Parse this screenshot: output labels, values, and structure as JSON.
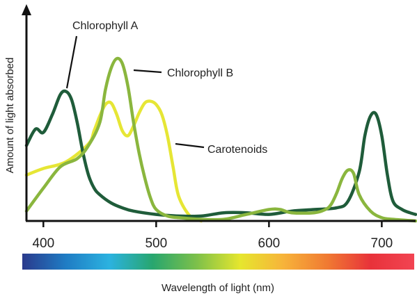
{
  "chart_data": {
    "type": "line",
    "title": "",
    "xlabel": "Wavelength of light (nm)",
    "ylabel": "Amount of light absorbed",
    "xlim": [
      385,
      730
    ],
    "ylim": [
      0,
      100
    ],
    "x_ticks": [
      "400",
      "500",
      "600",
      "700"
    ],
    "grid": false,
    "legend": "annotations",
    "spectrum_bar": {
      "colors": [
        "#2a3a8c",
        "#1f7cc4",
        "#2bb2e0",
        "#28a66e",
        "#7cc04a",
        "#e6e62e",
        "#f7b33a",
        "#f07a32",
        "#e8323a",
        "#f24452"
      ]
    },
    "series": [
      {
        "name": "Chlorophyll A",
        "color": "#1f5c3a",
        "x": [
          385,
          393,
          400,
          408,
          415,
          420,
          425,
          430,
          435,
          440,
          445,
          450,
          460,
          470,
          480,
          500,
          520,
          540,
          560,
          580,
          600,
          620,
          640,
          660,
          670,
          680,
          685,
          690,
          695,
          700,
          705,
          710,
          718,
          725,
          730
        ],
        "y": [
          46,
          56,
          54,
          65,
          77,
          79,
          74,
          60,
          42,
          28,
          20,
          16,
          11,
          8,
          6,
          4,
          3,
          3,
          5,
          5,
          4,
          6,
          7,
          8,
          12,
          30,
          52,
          64,
          65,
          52,
          28,
          12,
          7,
          5,
          4
        ]
      },
      {
        "name": "Chlorophyll B",
        "color": "#8ab63e",
        "x": [
          385,
          400,
          415,
          430,
          440,
          450,
          455,
          460,
          465,
          470,
          475,
          480,
          485,
          490,
          495,
          500,
          510,
          520,
          540,
          560,
          580,
          600,
          610,
          620,
          640,
          650,
          655,
          660,
          665,
          670,
          675,
          680,
          690,
          700,
          710,
          730
        ],
        "y": [
          6,
          20,
          33,
          38,
          46,
          60,
          80,
          93,
          99,
          96,
          82,
          60,
          41,
          26,
          14,
          7,
          3,
          2,
          1,
          1,
          4,
          7,
          7,
          5,
          5,
          7,
          10,
          17,
          26,
          31,
          29,
          16,
          6,
          2,
          1,
          0
        ]
      },
      {
        "name": "Carotenoids",
        "color": "#e6e635",
        "x": [
          385,
          400,
          420,
          440,
          445,
          450,
          455,
          460,
          465,
          470,
          475,
          480,
          485,
          490,
          495,
          500,
          505,
          510,
          515,
          520,
          530,
          540
        ],
        "y": [
          28,
          32,
          36,
          47,
          55,
          64,
          71,
          72,
          65,
          55,
          52,
          58,
          66,
          72,
          73,
          71,
          65,
          52,
          33,
          15,
          3,
          0
        ]
      }
    ]
  },
  "annotations": {
    "chlorophyll_a": "Chlorophyll A",
    "chlorophyll_b": "Chlorophyll B",
    "carotenoids": "Carotenoids"
  }
}
